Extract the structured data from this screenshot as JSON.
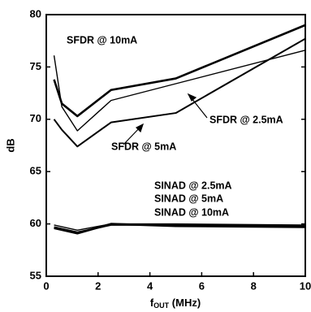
{
  "chart_data": {
    "type": "line",
    "ylabel": "dB",
    "xlabel": [
      "f",
      "OUT",
      " (MHz)"
    ],
    "xlim": [
      0,
      10
    ],
    "xticks": [
      0,
      2,
      4,
      6,
      8,
      10
    ],
    "ylim": [
      55,
      80
    ],
    "yticks": [
      55,
      60,
      65,
      70,
      75,
      80
    ],
    "series": [
      {
        "name": "SFDR @ 10mA",
        "color": "#000000",
        "line_width": 2.6,
        "x": [
          0.3,
          0.6,
          1.2,
          2.5,
          5,
          10
        ],
        "values": [
          73.8,
          71.5,
          70.3,
          72.8,
          73.9,
          79.0
        ]
      },
      {
        "name": "SFDR @ 2.5mA",
        "color": "#000000",
        "line_width": 1.4,
        "x": [
          0.3,
          0.6,
          1.2,
          2.5,
          5,
          10
        ],
        "values": [
          76.1,
          71.2,
          68.9,
          71.8,
          73.4,
          76.6
        ]
      },
      {
        "name": "SFDR @ 5mA",
        "color": "#000000",
        "line_width": 2.0,
        "x": [
          0.3,
          0.6,
          1.2,
          2.5,
          5,
          10
        ],
        "values": [
          70.0,
          69.0,
          67.4,
          69.7,
          70.6,
          77.7
        ]
      },
      {
        "name": "SINAD @ 2.5mA",
        "color": "#000000",
        "line_width": 1.4,
        "x": [
          0.3,
          1.2,
          2.5,
          5,
          10
        ],
        "values": [
          59.9,
          59.4,
          60.0,
          60.0,
          59.9
        ]
      },
      {
        "name": "SINAD @ 5mA",
        "color": "#000000",
        "line_width": 2.0,
        "x": [
          0.3,
          1.2,
          2.5,
          5,
          10
        ],
        "values": [
          59.7,
          59.2,
          59.9,
          59.9,
          59.8
        ]
      },
      {
        "name": "SINAD @ 10mA",
        "color": "#000000",
        "line_width": 2.6,
        "x": [
          0.3,
          1.2,
          2.5,
          5,
          10
        ],
        "values": [
          59.6,
          59.1,
          60.0,
          59.8,
          59.7
        ]
      }
    ]
  }
}
